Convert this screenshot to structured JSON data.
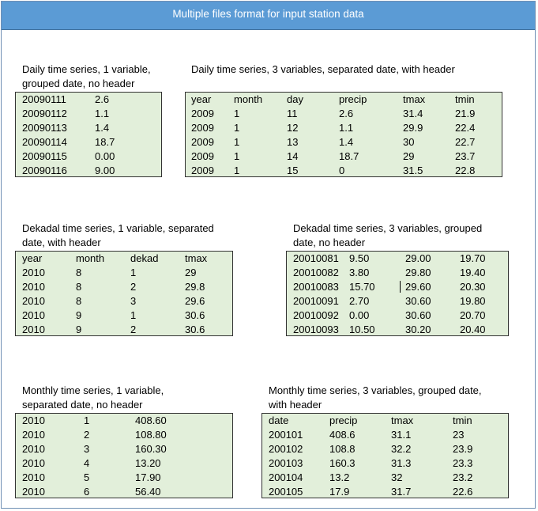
{
  "title": "Multiple files format for input station data",
  "panels": [
    {
      "id": "daily-1var",
      "caption": [
        "Daily time series, 1 variable,",
        "grouped date, no header"
      ],
      "rows": [
        [
          "20090111",
          "2.6"
        ],
        [
          "20090112",
          "1.1"
        ],
        [
          "20090113",
          "1.4"
        ],
        [
          "20090114",
          "18.7"
        ],
        [
          "20090115",
          "0.00"
        ],
        [
          "20090116",
          "9.00"
        ]
      ]
    },
    {
      "id": "daily-3var",
      "caption": [
        "Daily time series, 3 variables, separated date, with header"
      ],
      "rows": [
        [
          "year",
          "month",
          "day",
          "precip",
          "tmax",
          "tmin"
        ],
        [
          "2009",
          "1",
          "11",
          "2.6",
          "31.4",
          "21.9"
        ],
        [
          "2009",
          "1",
          "12",
          "1.1",
          "29.9",
          "22.4"
        ],
        [
          "2009",
          "1",
          "13",
          "1.4",
          "30",
          "22.7"
        ],
        [
          "2009",
          "1",
          "14",
          "18.7",
          "29",
          "23.7"
        ],
        [
          "2009",
          "1",
          "15",
          "0",
          "31.5",
          "22.8"
        ]
      ]
    },
    {
      "id": "dekadal-1var",
      "caption": [
        "Dekadal time series, 1 variable, separated",
        "date, with header"
      ],
      "rows": [
        [
          "year",
          "month",
          "dekad",
          "tmax"
        ],
        [
          "2010",
          "8",
          "1",
          "29"
        ],
        [
          "2010",
          "8",
          "2",
          "29.8"
        ],
        [
          "2010",
          "8",
          "3",
          "29.6"
        ],
        [
          "2010",
          "9",
          "1",
          "30.6"
        ],
        [
          "2010",
          "9",
          "2",
          "30.6"
        ]
      ]
    },
    {
      "id": "dekadal-3var",
      "caption": [
        "Dekadal time series, 3 variables, grouped",
        "date, no header"
      ],
      "rows": [
        [
          "20010081",
          "9.50",
          "29.00",
          "19.70"
        ],
        [
          "20010082",
          "3.80",
          "29.80",
          "19.40"
        ],
        [
          "20010083",
          "15.70",
          "29.60",
          "20.30"
        ],
        [
          "20010091",
          "2.70",
          "30.60",
          "19.80"
        ],
        [
          "20010092",
          "0.00",
          "30.60",
          "20.70"
        ],
        [
          "20010093",
          "10.50",
          "30.20",
          "20.40"
        ]
      ]
    },
    {
      "id": "monthly-1var",
      "caption": [
        "Monthly time series, 1 variable,",
        "separated date, no header"
      ],
      "rows": [
        [
          "2010",
          "1",
          "408.60"
        ],
        [
          "2010",
          "2",
          "108.80"
        ],
        [
          "2010",
          "3",
          "160.30"
        ],
        [
          "2010",
          "4",
          "13.20"
        ],
        [
          "2010",
          "5",
          "17.90"
        ],
        [
          "2010",
          "6",
          "56.40"
        ]
      ]
    },
    {
      "id": "monthly-3var",
      "caption": [
        "Monthly time series, 3 variables, grouped date,",
        "with header"
      ],
      "rows": [
        [
          "date",
          "precip",
          "tmax",
          "tmin"
        ],
        [
          "200101",
          "408.6",
          "31.1",
          "23"
        ],
        [
          "200102",
          "108.8",
          "32.2",
          "23.9"
        ],
        [
          "200103",
          "160.3",
          "31.3",
          "23.3"
        ],
        [
          "200104",
          "13.2",
          "32",
          "23.2"
        ],
        [
          "200105",
          "17.9",
          "31.7",
          "22.6"
        ]
      ]
    }
  ]
}
